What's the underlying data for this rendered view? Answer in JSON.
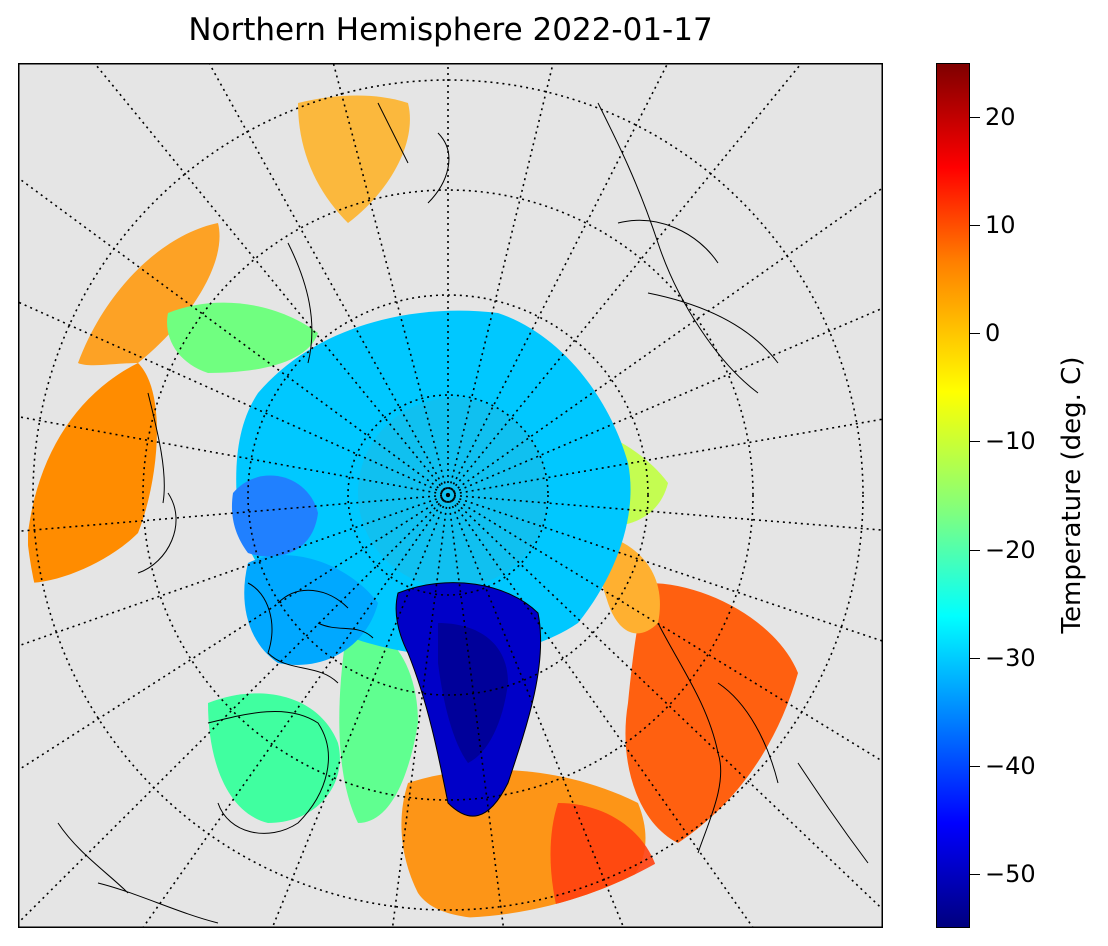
{
  "title": "Northern Hemisphere 2022-01-17",
  "map": {
    "projection": "north polar stereographic",
    "background_color": "#e5e5e5",
    "graticule_style": "dotted",
    "variable": "surface temperature"
  },
  "colorbar": {
    "label": "Temperature (deg. C)",
    "colormap": "jet",
    "range": [
      -55,
      25
    ],
    "ticks": [
      20,
      10,
      0,
      -10,
      -20,
      -30,
      -40,
      -50
    ],
    "tick_labels": [
      "20",
      "10",
      "0",
      "−10",
      "−20",
      "−30",
      "−40",
      "−50"
    ]
  }
}
